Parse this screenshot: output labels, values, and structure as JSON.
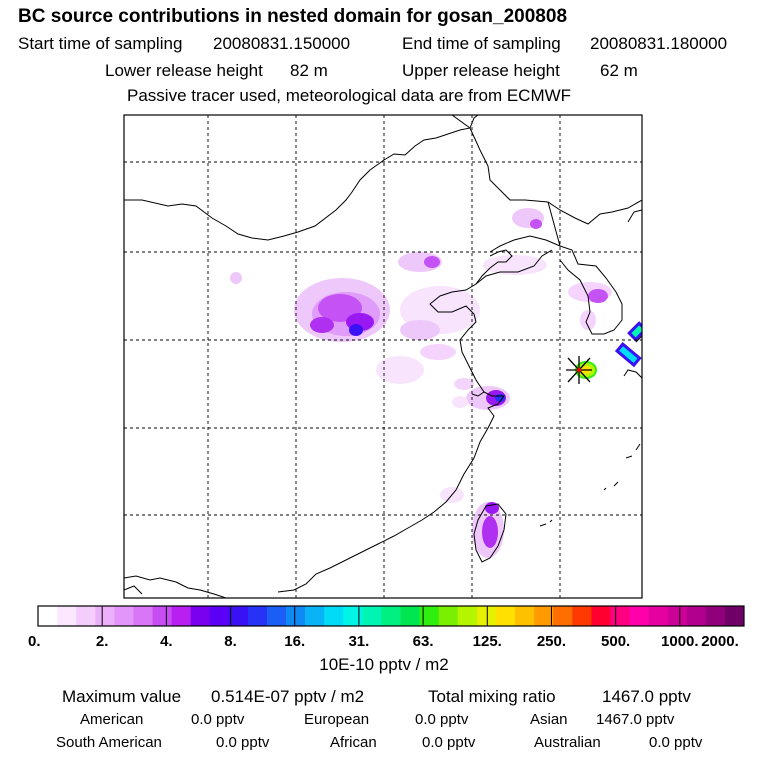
{
  "title": "BC  source contributions in nested domain for gosan_200808",
  "sampling": {
    "start_label": "Start time of sampling",
    "start_value": "20080831.150000",
    "end_label": "End time of sampling",
    "end_value": "20080831.180000"
  },
  "release": {
    "lower_label": "Lower release height",
    "lower_value": "82 m",
    "upper_label": "Upper release height",
    "upper_value": "62 m"
  },
  "subtitle": "Passive tracer used, meteorological data are from ECMWF",
  "colorbar": {
    "colors": [
      "#ffffff",
      "#fbe8ff",
      "#f4cdfc",
      "#ecb1fb",
      "#e396f9",
      "#d975f7",
      "#c74cf4",
      "#b820f0",
      "#7a00f0",
      "#5a00f4",
      "#3a10f5",
      "#2632f5",
      "#1a5ef5",
      "#0f8af5",
      "#08b4f5",
      "#00dcf5",
      "#00f5e6",
      "#00f5b4",
      "#00f082",
      "#00e650",
      "#30ee10",
      "#7af000",
      "#b4f500",
      "#e6f000",
      "#ffe000",
      "#ffc000",
      "#ff9a00",
      "#ff6e00",
      "#ff3a00",
      "#ff0030",
      "#ff0080",
      "#ff00aa",
      "#e600a0",
      "#cc0096",
      "#b0008c",
      "#90007a",
      "#6e0066"
    ],
    "tick_labels": [
      "0.",
      "2.",
      "4.",
      "8.",
      "16.",
      "31.",
      "63.",
      "125.",
      "250.",
      "500.",
      "1000.",
      "2000."
    ],
    "units": "10E-10 pptv / m2"
  },
  "summary": {
    "max_label": "Maximum value",
    "max_value": "0.514E-07 pptv / m2",
    "total_label": "Total mixing ratio",
    "total_value": "1467.0 pptv",
    "regions": [
      {
        "name": "American",
        "value": "0.0 pptv"
      },
      {
        "name": "European",
        "value": "0.0 pptv"
      },
      {
        "name": "Asian",
        "value": "1467.0 pptv"
      },
      {
        "name": "South American",
        "value": "0.0 pptv"
      },
      {
        "name": "African",
        "value": "0.0 pptv"
      },
      {
        "name": "Australian",
        "value": "0.0 pptv"
      }
    ]
  },
  "receptor": {
    "name": "gosan",
    "marker_color": "#ff0000"
  }
}
